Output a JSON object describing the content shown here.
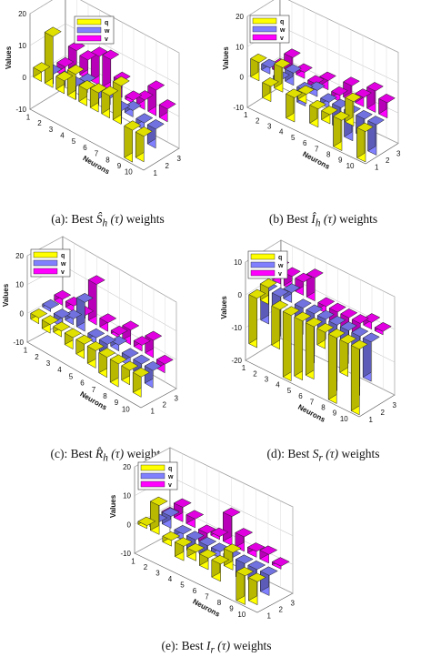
{
  "series_colors": {
    "q": "#ffff00",
    "w": "#8080ff",
    "v": "#ff00ff"
  },
  "chart_data": [
    {
      "type": "bar",
      "caption": "(a): Best Ŝ_h(τ) weights",
      "caption_prefix": "(a): Best",
      "caption_symbol": "Ŝ",
      "caption_sub": "h",
      "caption_arg": "(τ)",
      "caption_suffix": "weights",
      "ylabel": "Values",
      "xlabel": "Neurons",
      "zlim": [
        -10,
        20
      ],
      "zticks": [
        "20",
        "10",
        "0",
        "-10"
      ],
      "neuron_ticks": [
        "1",
        "2",
        "3",
        "4",
        "5",
        "6",
        "7",
        "8",
        "9",
        "10"
      ],
      "depth_ticks": [
        "1",
        "2",
        "3"
      ],
      "series": [
        {
          "name": "q",
          "values": [
            3,
            16,
            4,
            8,
            5,
            6,
            7,
            12,
            -10,
            -8
          ]
        },
        {
          "name": "w",
          "values": [
            -3,
            -2,
            -4,
            3,
            -2,
            2,
            -4,
            2,
            -2,
            -6
          ]
        },
        {
          "name": "v",
          "values": [
            -3,
            7,
            6,
            9,
            10,
            5,
            1,
            3,
            8,
            4
          ]
        }
      ],
      "legend_position": "top-right"
    },
    {
      "type": "bar",
      "caption": "(b) Best Î_h(τ) weights",
      "caption_prefix": "(b) Best",
      "caption_symbol": "Î",
      "caption_sub": "h",
      "caption_arg": "(τ)",
      "caption_suffix": "weights",
      "ylabel": "Values",
      "xlabel": "Neurons",
      "zlim": [
        -10,
        20
      ],
      "zticks": [
        "20",
        "10",
        "0",
        "-10"
      ],
      "neuron_ticks": [
        "1",
        "2",
        "3",
        "4",
        "5",
        "6",
        "7",
        "8",
        "9",
        "10"
      ],
      "depth_ticks": [
        "1",
        "2",
        "3"
      ],
      "series": [
        {
          "name": "q",
          "values": [
            6,
            -5,
            8,
            -8,
            3,
            -6,
            -3,
            -10,
            8,
            -12
          ]
        },
        {
          "name": "w",
          "values": [
            2,
            -3,
            4,
            -5,
            2,
            -2,
            -7,
            -9,
            -6,
            -13
          ]
        },
        {
          "name": "v",
          "values": [
            -2,
            5,
            2,
            -3,
            3,
            -2,
            5,
            3,
            7,
            5
          ]
        }
      ],
      "legend_position": "top-right"
    },
    {
      "type": "bar",
      "caption": "(c): Best R̂_h(τ) weights",
      "caption_prefix": "(c): Best",
      "caption_symbol": "R̂",
      "caption_sub": "h",
      "caption_arg": "(τ)",
      "caption_suffix": "weights",
      "ylabel": "Values",
      "xlabel": "Neurons",
      "zlim": [
        -10,
        20
      ],
      "zticks": [
        "20",
        "10",
        "0",
        "-10"
      ],
      "neuron_ticks": [
        "1",
        "2",
        "3",
        "4",
        "5",
        "6",
        "7",
        "8",
        "9",
        "10"
      ],
      "depth_ticks": [
        "1",
        "2",
        "3"
      ],
      "series": [
        {
          "name": "q",
          "values": [
            -2,
            -3,
            -2,
            -4,
            -5,
            -6,
            -7,
            -8,
            -5,
            -7
          ]
        },
        {
          "name": "w",
          "values": [
            1,
            -3,
            2,
            10,
            -2,
            -4,
            2,
            -3,
            -4,
            -6
          ]
        },
        {
          "name": "v",
          "values": [
            2,
            2,
            1,
            14,
            3,
            1,
            5,
            2,
            6,
            -3
          ]
        }
      ],
      "legend_position": "top-left"
    },
    {
      "type": "bar",
      "caption": "(d): Best S_r(τ) weights",
      "caption_prefix": "(d): Best",
      "caption_symbol": "S",
      "caption_sub": "r",
      "caption_arg": "(τ)",
      "caption_suffix": "weights",
      "ylabel": "Values",
      "xlabel": "Neurons",
      "zlim": [
        -20,
        10
      ],
      "zticks": [
        "10",
        "0",
        "-10",
        "-20"
      ],
      "neuron_ticks": [
        "1",
        "2",
        "3",
        "4",
        "5",
        "6",
        "7",
        "8",
        "9",
        "10"
      ],
      "depth_ticks": [
        "1",
        "2",
        "3"
      ],
      "series": [
        {
          "name": "q",
          "values": [
            -15,
            5,
            -12,
            -20,
            -18,
            -16,
            -5,
            -25,
            -10,
            -22
          ]
        },
        {
          "name": "w",
          "values": [
            -10,
            -12,
            3,
            -8,
            -15,
            -6,
            -22,
            -10,
            -18,
            -12
          ]
        },
        {
          "name": "v",
          "values": [
            5,
            4,
            4,
            7,
            -2,
            -4,
            -6,
            -5,
            2,
            1
          ]
        }
      ],
      "legend_position": "top-left"
    },
    {
      "type": "bar",
      "caption": "(e): Best I_r(τ) weights",
      "caption_prefix": "(e): Best",
      "caption_symbol": "I",
      "caption_sub": "r",
      "caption_arg": "(τ)",
      "caption_suffix": "weights",
      "ylabel": "Values",
      "xlabel": "Neurons",
      "zlim": [
        -10,
        20
      ],
      "zticks": [
        "20",
        "10",
        "0",
        "-10"
      ],
      "neuron_ticks": [
        "1",
        "2",
        "3",
        "4",
        "5",
        "6",
        "7",
        "8",
        "9",
        "10"
      ],
      "depth_ticks": [
        "1",
        "2",
        "3"
      ],
      "series": [
        {
          "name": "q",
          "values": [
            1,
            10,
            -2,
            -5,
            -3,
            -4,
            -6,
            6,
            -10,
            -8
          ]
        },
        {
          "name": "w",
          "values": [
            -3,
            4,
            -2,
            -5,
            -4,
            -2,
            -2,
            -6,
            -5,
            -7
          ]
        },
        {
          "name": "v",
          "values": [
            -2,
            5,
            3,
            -4,
            1,
            10,
            5,
            2,
            3,
            1
          ]
        }
      ],
      "legend_position": "top-left"
    }
  ]
}
